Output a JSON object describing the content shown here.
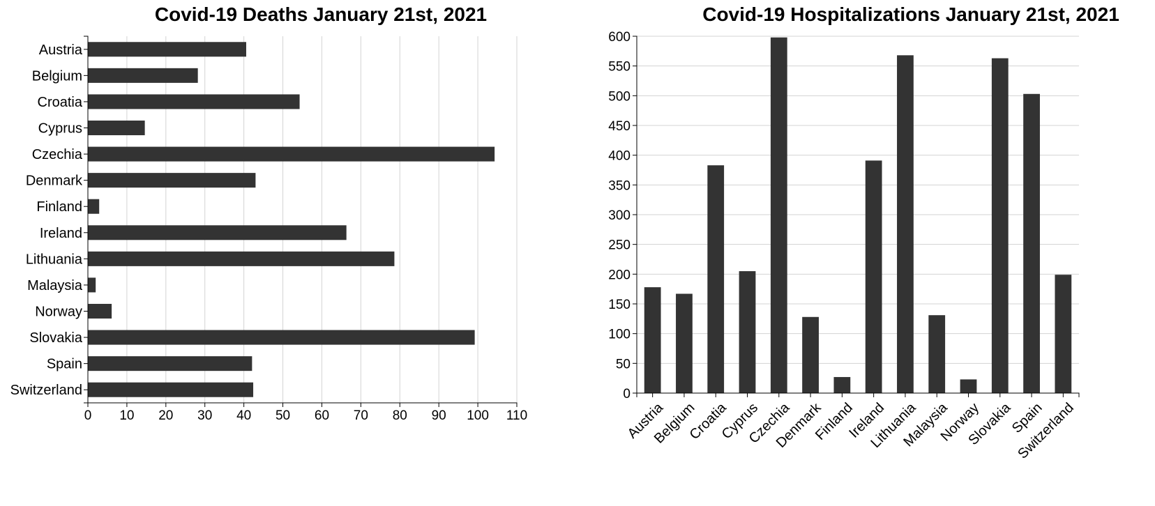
{
  "chart_data": [
    {
      "type": "bar",
      "orientation": "horizontal",
      "title": "Covid-19 Deaths January 21st, 2021",
      "xlabel": "",
      "ylabel": "",
      "categories": [
        "Austria",
        "Belgium",
        "Croatia",
        "Cyprus",
        "Czechia",
        "Denmark",
        "Finland",
        "Ireland",
        "Lithuania",
        "Malaysia",
        "Norway",
        "Slovakia",
        "Spain",
        "Switzerland"
      ],
      "values": [
        40.6,
        28.2,
        54.3,
        14.6,
        104.3,
        43.0,
        2.9,
        66.3,
        78.6,
        2.0,
        6.1,
        99.2,
        42.1,
        42.4
      ],
      "xlim": [
        0,
        110
      ],
      "ticks": [
        "0",
        "10",
        "20",
        "30",
        "40",
        "50",
        "60",
        "70",
        "80",
        "90",
        "100",
        "110"
      ],
      "grid": true,
      "bar_color": "#333333"
    },
    {
      "type": "bar",
      "orientation": "vertical",
      "title": "Covid-19 Hospitalizations January 21st, 2021",
      "xlabel": "",
      "ylabel": "",
      "categories": [
        "Austria",
        "Belgium",
        "Croatia",
        "Cyprus",
        "Czechia",
        "Denmark",
        "Finland",
        "Ireland",
        "Lithuania",
        "Malaysia",
        "Norway",
        "Slovakia",
        "Spain",
        "Switzerland"
      ],
      "values": [
        178,
        167,
        383,
        205,
        598,
        128,
        27,
        391,
        568,
        131,
        23,
        563,
        503,
        199
      ],
      "ylim": [
        0,
        600
      ],
      "ticks": [
        "0",
        "50",
        "100",
        "150",
        "200",
        "250",
        "300",
        "350",
        "400",
        "450",
        "500",
        "550",
        "600"
      ],
      "grid": true,
      "bar_color": "#333333"
    }
  ]
}
